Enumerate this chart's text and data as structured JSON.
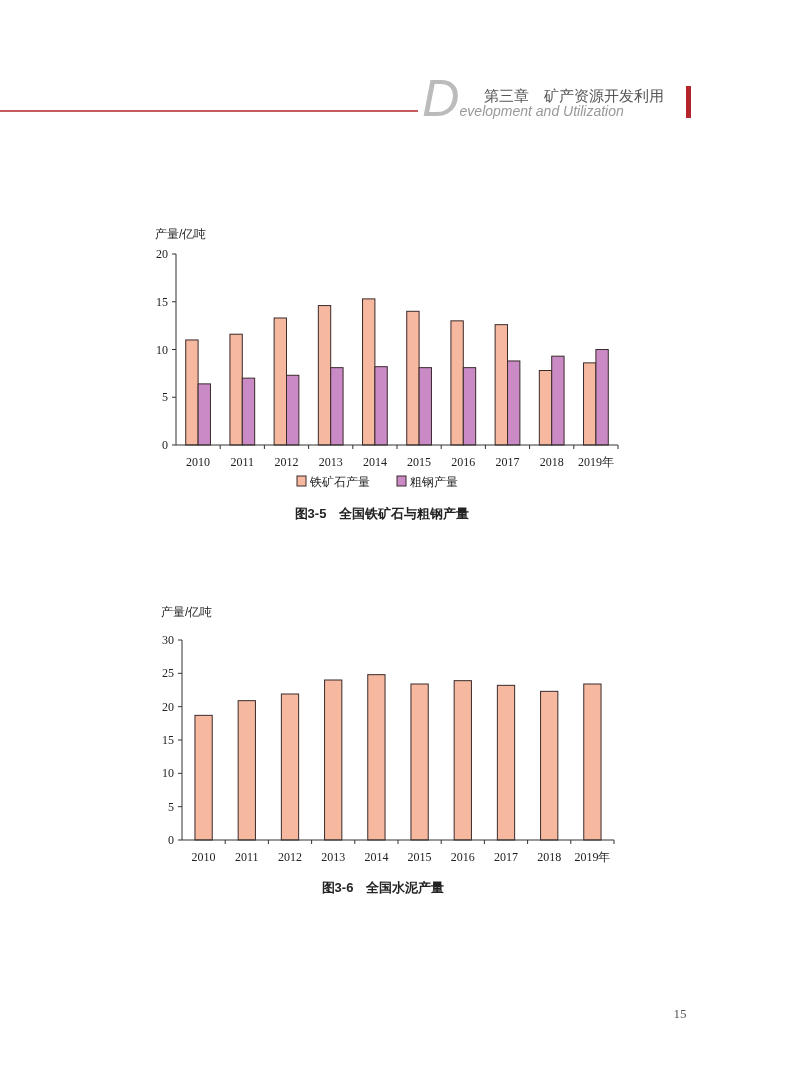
{
  "chart_data": [
    {
      "type": "bar",
      "title": "图3-5　全国铁矿石与粗钢产量",
      "ylabel": "产量/亿吨",
      "annotations": [
        "第三章　矿产资源开发利用",
        "Development and Utilization",
        "15"
      ],
      "categories": [
        "2010",
        "2011",
        "2012",
        "2013",
        "2014",
        "2015",
        "2016",
        "2017",
        "2018",
        "2019年"
      ],
      "series": [
        {
          "name": "铁矿石产量",
          "color": "#f6b9a0",
          "values": [
            11.0,
            11.6,
            13.3,
            14.6,
            15.3,
            14.0,
            13.0,
            12.6,
            7.8,
            8.6
          ]
        },
        {
          "name": "粗钢产量",
          "color": "#c98ac6",
          "values": [
            6.4,
            7.0,
            7.3,
            8.1,
            8.2,
            8.1,
            8.1,
            8.8,
            9.3,
            10.0
          ]
        }
      ],
      "ylim": [
        0,
        20
      ],
      "yticks": [
        0,
        5,
        10,
        15,
        20
      ],
      "legend": "bottom"
    },
    {
      "type": "bar",
      "title": "图3-6　全国水泥产量",
      "ylabel": "产量/亿吨",
      "categories": [
        "2010",
        "2011",
        "2012",
        "2013",
        "2014",
        "2015",
        "2016",
        "2017",
        "2018",
        "2019年"
      ],
      "series": [
        {
          "color": "#f6b9a0",
          "values": [
            18.7,
            20.9,
            21.9,
            24.0,
            24.8,
            23.4,
            23.9,
            23.2,
            22.3,
            23.4
          ]
        }
      ],
      "ylim": [
        0,
        30
      ],
      "yticks": [
        0,
        5,
        10,
        15,
        20,
        25,
        30
      ]
    }
  ]
}
